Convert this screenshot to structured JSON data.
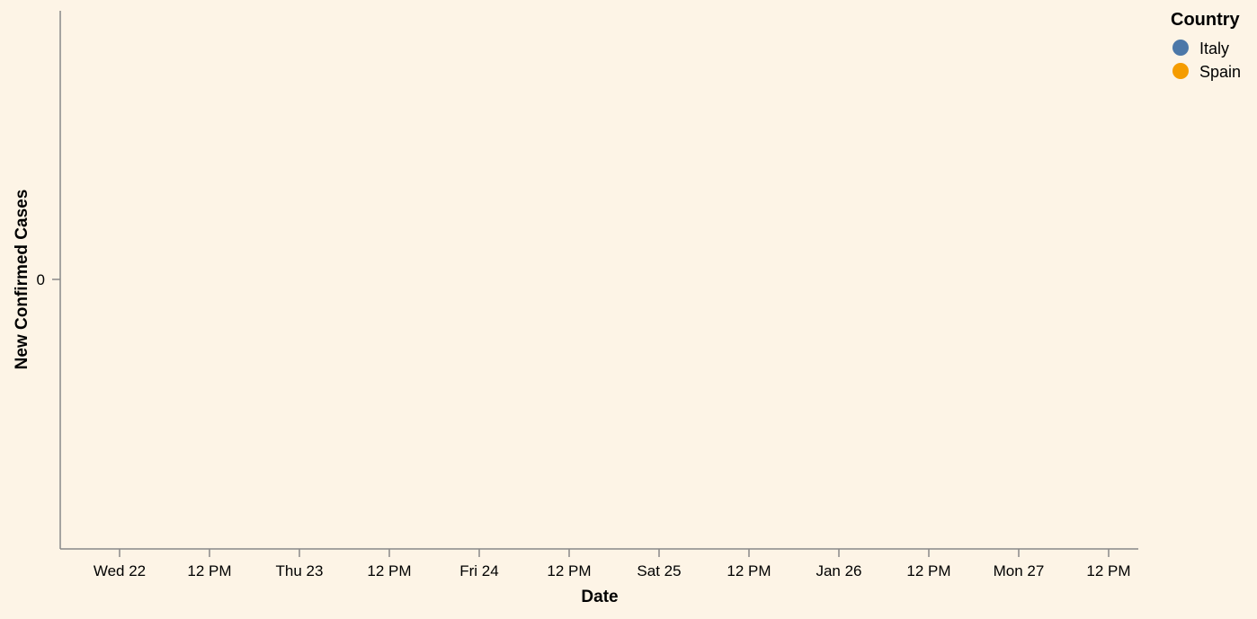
{
  "chart_data": {
    "type": "line",
    "title": "",
    "xlabel": "Date",
    "ylabel": "New Confirmed Cases",
    "x_ticks": [
      "Wed 22",
      "12 PM",
      "Thu 23",
      "12 PM",
      "Fri 24",
      "12 PM",
      "Sat 25",
      "12 PM",
      "Jan 26",
      "12 PM",
      "Mon 27",
      "12 PM"
    ],
    "y_ticks": [
      "0"
    ],
    "x_domain": [
      "2020-01-21T16:00",
      "2020-01-27T19:00"
    ],
    "legend": {
      "title": "Country",
      "position": "top-right",
      "entries": [
        {
          "name": "Italy",
          "color": "#4c78a8"
        },
        {
          "name": "Spain",
          "color": "#f59c00"
        }
      ]
    },
    "series": [
      {
        "name": "Italy",
        "values": []
      },
      {
        "name": "Spain",
        "values": []
      }
    ],
    "grid": false
  },
  "colors": {
    "background": "#fdf4e6",
    "axis": "#888888"
  }
}
